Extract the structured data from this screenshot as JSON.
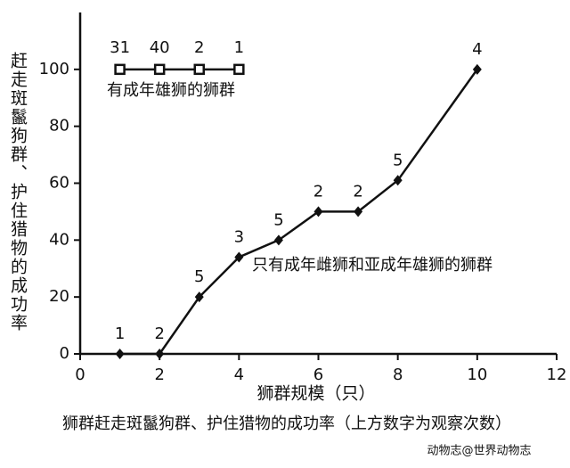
{
  "chart_data": {
    "type": "line",
    "title": null,
    "y_label": "赶走斑鬣狗群、护住猎物的成功率",
    "x_label": "狮群规模（只）",
    "caption": "狮群赶走斑鬣狗群、护住猎物的成功率（上方数字为观察次数）",
    "watermark": "动物志@世界动物志",
    "xlim": [
      0,
      12
    ],
    "xticks": [
      0,
      2,
      4,
      6,
      8,
      10,
      12
    ],
    "ylim": [
      0,
      120
    ],
    "yticks": [
      0,
      20,
      40,
      60,
      80,
      100
    ],
    "series": [
      {
        "name": "有成年雄狮的狮群",
        "color": "#111111",
        "marker": "square",
        "x": [
          1,
          2,
          3,
          4
        ],
        "values": [
          100,
          100,
          100,
          100
        ],
        "counts": [
          31,
          40,
          2,
          1
        ]
      },
      {
        "name": "只有成年雌狮和亚成年雄狮的狮群",
        "color": "#111111",
        "marker": "diamond",
        "x": [
          1,
          2,
          3,
          4,
          5,
          6,
          7,
          8,
          10
        ],
        "values": [
          0,
          0,
          20,
          34,
          40,
          50,
          50,
          61,
          100
        ],
        "counts": [
          1,
          2,
          5,
          3,
          5,
          2,
          2,
          5,
          4
        ]
      }
    ]
  }
}
